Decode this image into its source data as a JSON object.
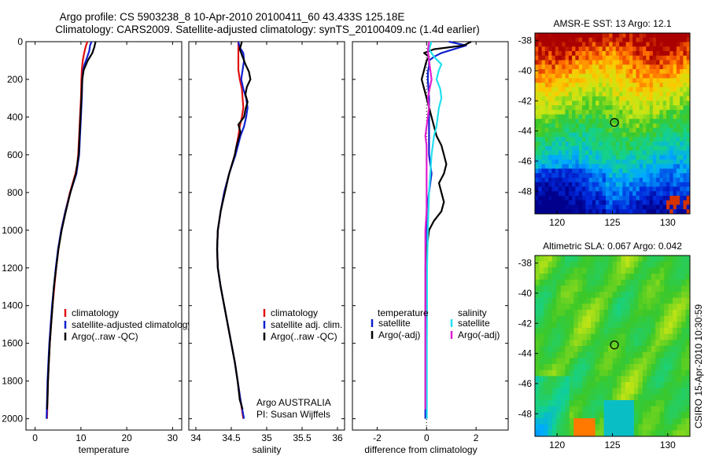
{
  "title": {
    "line1": "Argo profile: CS 5903238_8 10-Apr-2010 20100411_60 43.433S 125.18E",
    "line2": "Climatology: CARS2009. Satellite-adjusted climatology: synTS_20100409.nc (1.4d earlier)"
  },
  "credit": "CSIRO 15-Apr-2010 10:30:59",
  "colors": {
    "red": "#e01010",
    "blue": "#1020d0",
    "black": "#000000",
    "cyan": "#20e0f0",
    "magenta": "#e020d0"
  },
  "chart_data": [
    {
      "id": "temperature",
      "type": "line",
      "xlabel": "temperature",
      "xlim": [
        -2,
        32
      ],
      "xticks": [
        0,
        10,
        20,
        30
      ],
      "ylim": [
        0,
        2060
      ],
      "yticks": [
        0,
        200,
        400,
        600,
        800,
        1000,
        1200,
        1400,
        1600,
        1800,
        2000
      ],
      "legend": {
        "placement": "middle-center",
        "labels": [
          "climatology",
          "satellite-adjusted climatology",
          "Argo(..raw -QC)"
        ]
      },
      "series": [
        {
          "name": "climatology",
          "color": "red",
          "depth": [
            0,
            30,
            60,
            100,
            150,
            200,
            300,
            400,
            500,
            600,
            650,
            700,
            800,
            900,
            1000,
            1100,
            1200,
            1300,
            1400,
            1500,
            1600,
            1700,
            1800,
            1900,
            2000
          ],
          "values": [
            11.4,
            11,
            10.7,
            10.4,
            10.2,
            10.1,
            10,
            9.8,
            9.6,
            9.4,
            9.2,
            8.8,
            7.6,
            6.6,
            5.7,
            5.1,
            4.6,
            4.2,
            3.8,
            3.5,
            3.2,
            3,
            2.8,
            2.7,
            2.6
          ]
        },
        {
          "name": "satellite-adjusted climatology",
          "color": "blue",
          "depth": [
            0,
            20,
            50,
            80,
            120,
            150,
            200,
            300,
            400,
            500,
            600,
            700,
            800,
            900,
            1000,
            1100,
            1200,
            1300,
            1400,
            1500,
            1600,
            1700,
            1800,
            1900,
            2000
          ],
          "values": [
            12.3,
            12,
            11.8,
            11.4,
            10.8,
            10.5,
            10.3,
            10.2,
            10,
            9.8,
            9.6,
            9,
            7.7,
            6.6,
            5.7,
            5,
            4.5,
            4.1,
            3.7,
            3.4,
            3.1,
            2.9,
            2.7,
            2.6,
            2.5
          ]
        },
        {
          "name": "Argo(..raw -QC)",
          "color": "black",
          "depth": [
            0,
            30,
            60,
            100,
            150,
            200,
            300,
            400,
            500,
            600,
            700,
            800,
            900,
            1000,
            1100,
            1200,
            1300,
            1400,
            1500,
            1600,
            1700,
            1800,
            1900,
            1950
          ],
          "values": [
            13.2,
            12.9,
            12.5,
            11.5,
            10.6,
            10.3,
            10.1,
            9.9,
            9.7,
            9.5,
            8.9,
            7.7,
            6.7,
            5.8,
            5.1,
            4.6,
            4.1,
            3.8,
            3.5,
            3.2,
            3,
            2.8,
            2.7,
            2.6
          ]
        }
      ]
    },
    {
      "id": "salinity",
      "type": "line",
      "xlabel": "salinity",
      "xlim": [
        33.9,
        36.1
      ],
      "xticks": [
        34,
        34.5,
        35,
        35.5,
        36
      ],
      "ylim": [
        0,
        2060
      ],
      "legend": {
        "placement": "middle-right",
        "labels": [
          "climatology",
          "satellite adj. clim.",
          "Argo(..raw -QC)"
        ]
      },
      "annotation": {
        "line1": "Argo AUSTRALIA",
        "line2": "PI: Susan Wijffels"
      },
      "series": [
        {
          "name": "climatology",
          "color": "red",
          "depth": [
            0,
            50,
            100,
            150,
            200,
            250,
            300,
            350,
            400,
            450,
            500,
            600,
            700,
            800,
            900,
            1000,
            1100,
            1200,
            1300,
            1400,
            1500,
            1600,
            1700,
            1800,
            1900,
            2000
          ],
          "values": [
            34.6,
            34.6,
            34.6,
            34.6,
            34.62,
            34.65,
            34.66,
            34.67,
            34.65,
            34.62,
            34.6,
            34.55,
            34.47,
            34.4,
            34.35,
            34.31,
            34.3,
            34.31,
            34.35,
            34.4,
            34.45,
            34.5,
            34.55,
            34.59,
            34.63,
            34.67
          ]
        },
        {
          "name": "satellite adj. clim.",
          "color": "blue",
          "depth": [
            0,
            30,
            60,
            100,
            150,
            200,
            250,
            300,
            350,
            400,
            450,
            500,
            600,
            700,
            800,
            900,
            1000,
            1100,
            1200,
            1300,
            1400,
            1500,
            1600,
            1700,
            1800,
            1900,
            2000
          ],
          "values": [
            34.6,
            34.62,
            34.67,
            34.68,
            34.66,
            34.64,
            34.67,
            34.71,
            34.73,
            34.71,
            34.68,
            34.63,
            34.56,
            34.47,
            34.4,
            34.35,
            34.31,
            34.3,
            34.31,
            34.35,
            34.4,
            34.45,
            34.5,
            34.55,
            34.59,
            34.63,
            34.68
          ]
        },
        {
          "name": "Argo(..raw -QC)",
          "color": "black",
          "depth": [
            0,
            40,
            80,
            120,
            160,
            200,
            240,
            280,
            320,
            360,
            400,
            440,
            480,
            520,
            560,
            600,
            700,
            800,
            900,
            1000,
            1100,
            1200,
            1300,
            1400,
            1500,
            1600,
            1700,
            1800,
            1900,
            1950
          ],
          "values": [
            34.65,
            34.62,
            34.66,
            34.7,
            34.75,
            34.77,
            34.72,
            34.7,
            34.73,
            34.7,
            34.68,
            34.6,
            34.63,
            34.6,
            34.57,
            34.55,
            34.47,
            34.41,
            34.35,
            34.31,
            34.3,
            34.31,
            34.35,
            34.4,
            34.45,
            34.5,
            34.55,
            34.59,
            34.62,
            34.66
          ]
        }
      ]
    },
    {
      "id": "difference",
      "type": "line",
      "xlabel": "difference from climatology",
      "xlim": [
        -3,
        3.3
      ],
      "xticks": [
        -2,
        0,
        2
      ],
      "ylim": [
        0,
        2060
      ],
      "legend": {
        "placement": "middle",
        "temperature_header": "temperature",
        "salinity_header": "salinity",
        "temperature_labels": [
          "satellite",
          "Argo(-adj)"
        ],
        "salinity_labels": [
          "satellite",
          "Argo(-adj)"
        ]
      },
      "series": [
        {
          "name": "temperature satellite",
          "color": "blue",
          "depth": [
            0,
            20,
            40,
            60,
            80,
            100,
            130,
            160,
            200,
            300,
            400,
            500,
            600,
            700,
            800,
            900,
            1000,
            1100,
            1200,
            1400,
            1600,
            1800,
            2000
          ],
          "values": [
            0.9,
            1.6,
            1.1,
            0.6,
            0.3,
            0.1,
            0.1,
            0.05,
            0.05,
            0.1,
            0.1,
            0.1,
            0.1,
            0.2,
            0.1,
            0,
            0,
            0,
            -0.05,
            -0.05,
            -0.05,
            -0.05,
            -0.05
          ]
        },
        {
          "name": "temperature Argo(-adj)",
          "color": "black",
          "depth": [
            0,
            20,
            40,
            60,
            80,
            100,
            150,
            200,
            300,
            400,
            500,
            550,
            600,
            650,
            700,
            750,
            800,
            850,
            900,
            950,
            1000,
            1100,
            1200,
            1400,
            1600,
            1800,
            1950
          ],
          "values": [
            1.8,
            1.5,
            0.3,
            -0.1,
            0.1,
            0,
            -0.1,
            -0.2,
            0,
            0.2,
            0.4,
            0.6,
            0.7,
            0.8,
            0.7,
            0.5,
            0.6,
            0.7,
            0.6,
            0.3,
            0.1,
            0,
            0,
            0,
            0,
            0,
            0
          ]
        },
        {
          "name": "salinity satellite",
          "color": "cyan",
          "depth": [
            0,
            40,
            80,
            120,
            150,
            200,
            250,
            300,
            350,
            400,
            450,
            500,
            600,
            800,
            1000,
            1200,
            1400,
            1600,
            1800,
            2000
          ],
          "values": [
            0.2,
            0.1,
            0.3,
            0.6,
            0.5,
            0.4,
            0.55,
            0.6,
            0.5,
            0.45,
            0.4,
            0.3,
            0.2,
            0.1,
            0.05,
            0.02,
            0.02,
            0.01,
            0.01,
            0.01
          ]
        },
        {
          "name": "salinity Argo(-adj)",
          "color": "magenta",
          "depth": [
            0,
            50,
            100,
            150,
            200,
            250,
            300,
            350,
            400,
            450,
            500,
            550,
            600,
            700,
            800,
            900,
            1000,
            1100,
            1200,
            1300,
            1400,
            1500,
            1600,
            1700,
            1800,
            1900,
            1950
          ],
          "values": [
            0.1,
            0.05,
            0.1,
            0.15,
            0.2,
            0.12,
            0.05,
            0.1,
            0.05,
            0,
            -0.05,
            0,
            0,
            0,
            0,
            0,
            -0.05,
            -0.05,
            -0.05,
            -0.05,
            -0.05,
            -0.05,
            -0.05,
            -0.05,
            -0.05,
            -0.05,
            -0.05
          ]
        }
      ]
    },
    {
      "id": "amsre_sst",
      "type": "heatmap",
      "title": "AMSR-E SST: 13 Argo: 12.1",
      "xlim": [
        118,
        132
      ],
      "xticks": [
        120,
        125,
        130
      ],
      "ylim": [
        -49.5,
        -37.5
      ],
      "yticks": [
        -38,
        -40,
        -42,
        -44,
        -46,
        -48
      ],
      "marker": {
        "lon": 125.18,
        "lat": -43.433
      }
    },
    {
      "id": "altimetric_sla",
      "type": "heatmap",
      "title": "Altimetric SLA: 0.067 Argo: 0.042",
      "xlim": [
        118,
        132
      ],
      "xticks": [
        120,
        125,
        130
      ],
      "ylim": [
        -49.5,
        -37.5
      ],
      "yticks": [
        -38,
        -40,
        -42,
        -44,
        -46,
        -48
      ],
      "marker": {
        "lon": 125.18,
        "lat": -43.433
      }
    }
  ]
}
